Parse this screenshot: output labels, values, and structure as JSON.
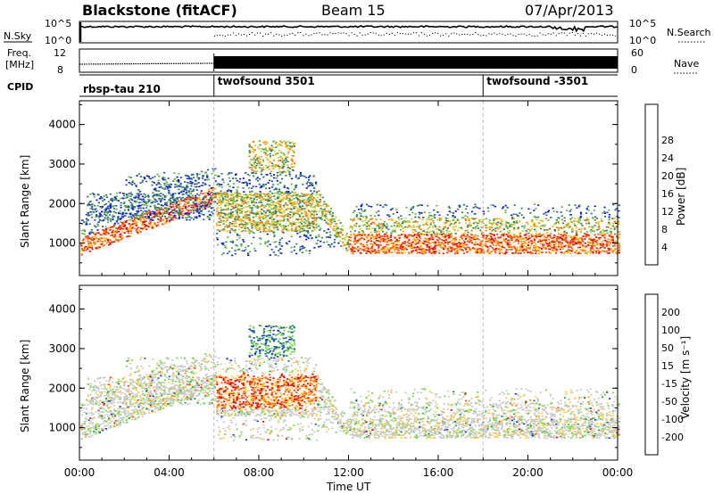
{
  "header": {
    "station": "Blackstone (fitACF)",
    "beam": "Beam 15",
    "date": "07/Apr/2013"
  },
  "noise_panel": {
    "left_label": "N.Sky",
    "right_label": "N.Search",
    "left_ticks": [
      "10^5",
      "10^0"
    ],
    "right_ticks": [
      "10^5",
      "10^0"
    ]
  },
  "freq_panel": {
    "label_line1": "Freq.",
    "label_line2": "[MHz]",
    "right_label": "Nave",
    "left_ticks": [
      "12",
      "8"
    ],
    "right_ticks": [
      "60",
      "0"
    ]
  },
  "cpid_panel": {
    "label": "CPID",
    "segments": [
      {
        "name": "rbsp-tau 210",
        "start_hour": 0
      },
      {
        "name": "twofsound 3501",
        "start_hour": 6
      },
      {
        "name": "twofsound -3501",
        "start_hour": 18
      }
    ]
  },
  "power_panel": {
    "ylabel": "Slant Range [km]",
    "yticks": [
      "1000",
      "2000",
      "3000",
      "4000"
    ],
    "cbar_label": "Power [dB]",
    "cbar_ticks": [
      "4",
      "8",
      "12",
      "16",
      "20",
      "24",
      "28"
    ]
  },
  "velocity_panel": {
    "ylabel": "Slant Range [km]",
    "yticks": [
      "1000",
      "2000",
      "3000",
      "4000"
    ],
    "cbar_label": "Velocity [m s⁻¹]",
    "cbar_ticks": [
      "200",
      "100",
      "50",
      "15",
      "-15",
      "-50",
      "-100",
      "-200"
    ]
  },
  "xaxis": {
    "label": "Time UT",
    "ticks": [
      "00:00",
      "04:00",
      "08:00",
      "12:00",
      "16:00",
      "20:00",
      "00:00"
    ]
  },
  "chart_data": {
    "type": "heatmap",
    "title": "Blackstone (fitACF)   Beam 15   07/Apr/2013",
    "xlabel": "Time UT",
    "ylabel": "Slant Range [km]",
    "xlim_hours": [
      0,
      24
    ],
    "ylim_km": [
      180,
      4600
    ],
    "power_colorbar": {
      "label": "Power [dB]",
      "ticks": [
        4,
        8,
        12,
        16,
        20,
        24,
        28
      ],
      "colors": [
        "#0a10e8",
        "#1f4fb0",
        "#2f7c5a",
        "#63b24a",
        "#b8d23a",
        "#ffb000",
        "#ff7a10",
        "#ff3a10",
        "#e80000"
      ]
    },
    "velocity_colorbar": {
      "label": "Velocity [m s⁻¹]",
      "ticks": [
        200,
        100,
        50,
        15,
        -15,
        -50,
        -100,
        -200
      ],
      "colors": [
        "#1a2fd6",
        "#1d7070",
        "#18a84a",
        "#73d64a",
        "#c8c8c8",
        "#ffcc33",
        "#ff8c10",
        "#ff4a10",
        "#e80000"
      ]
    },
    "cpid_changes_hours": [
      6,
      18
    ],
    "scatter_bands": [
      {
        "t": [
          0,
          6
        ],
        "range_km": [
          800,
          2100
        ],
        "note": "sloped ionospheric echo rising from ~800 km at 00 UT to ~2100 km at 06 UT"
      },
      {
        "t": [
          6,
          10.5
        ],
        "range_km": [
          1300,
          2300
        ],
        "note": "dense echo around 1600-2200 km"
      },
      {
        "t": [
          7.5,
          9
        ],
        "range_km": [
          2800,
          3600
        ],
        "note": "high-range patch ~3000-3500 km"
      },
      {
        "t": [
          10.5,
          12
        ],
        "range_km": [
          900,
          2200
        ],
        "note": "descending echo"
      },
      {
        "t": [
          12,
          24
        ],
        "range_km": [
          700,
          1500
        ],
        "note": "strong band around 1000 km"
      }
    ]
  }
}
